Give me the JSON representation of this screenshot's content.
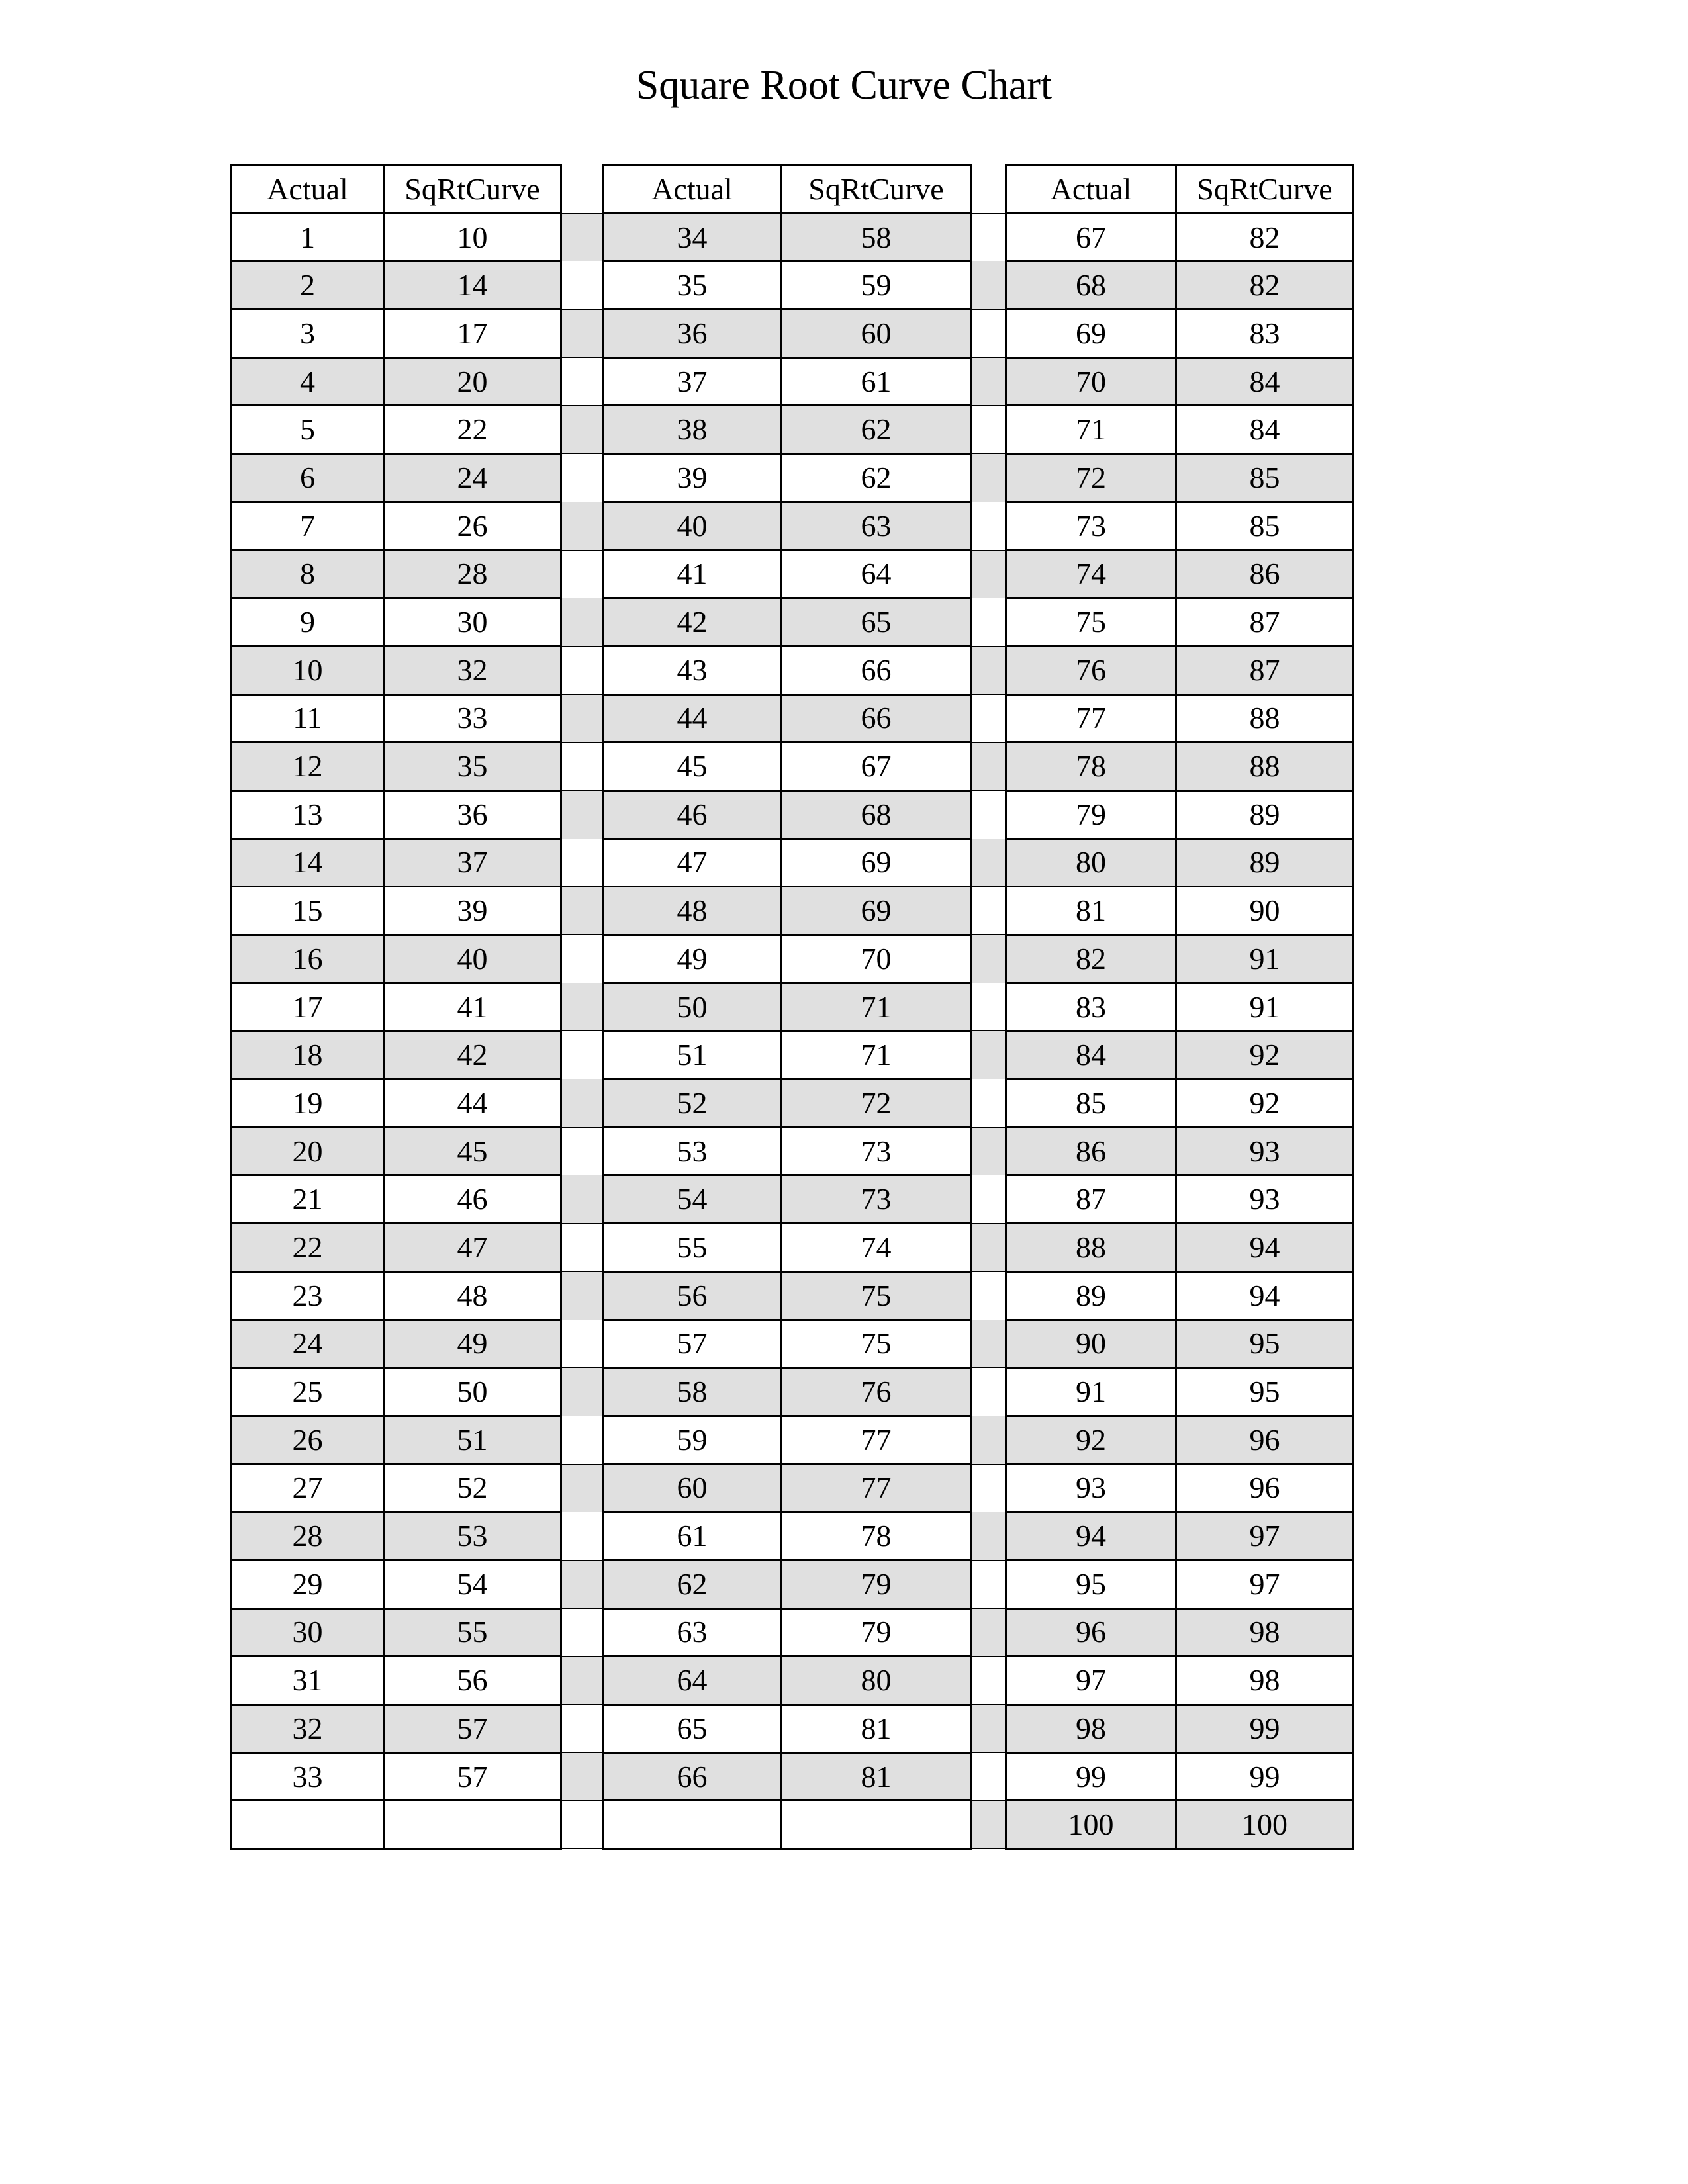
{
  "title": "Square Root Curve Chart",
  "headers": [
    "Actual",
    "SqRtCurve"
  ],
  "shade_color": "#e0e0e0",
  "blocks": [
    {
      "rows": [
        [
          1,
          10
        ],
        [
          2,
          14
        ],
        [
          3,
          17
        ],
        [
          4,
          20
        ],
        [
          5,
          22
        ],
        [
          6,
          24
        ],
        [
          7,
          26
        ],
        [
          8,
          28
        ],
        [
          9,
          30
        ],
        [
          10,
          32
        ],
        [
          11,
          33
        ],
        [
          12,
          35
        ],
        [
          13,
          36
        ],
        [
          14,
          37
        ],
        [
          15,
          39
        ],
        [
          16,
          40
        ],
        [
          17,
          41
        ],
        [
          18,
          42
        ],
        [
          19,
          44
        ],
        [
          20,
          45
        ],
        [
          21,
          46
        ],
        [
          22,
          47
        ],
        [
          23,
          48
        ],
        [
          24,
          49
        ],
        [
          25,
          50
        ],
        [
          26,
          51
        ],
        [
          27,
          52
        ],
        [
          28,
          53
        ],
        [
          29,
          54
        ],
        [
          30,
          55
        ],
        [
          31,
          56
        ],
        [
          32,
          57
        ],
        [
          33,
          57
        ]
      ]
    },
    {
      "rows": [
        [
          34,
          58
        ],
        [
          35,
          59
        ],
        [
          36,
          60
        ],
        [
          37,
          61
        ],
        [
          38,
          62
        ],
        [
          39,
          62
        ],
        [
          40,
          63
        ],
        [
          41,
          64
        ],
        [
          42,
          65
        ],
        [
          43,
          66
        ],
        [
          44,
          66
        ],
        [
          45,
          67
        ],
        [
          46,
          68
        ],
        [
          47,
          69
        ],
        [
          48,
          69
        ],
        [
          49,
          70
        ],
        [
          50,
          71
        ],
        [
          51,
          71
        ],
        [
          52,
          72
        ],
        [
          53,
          73
        ],
        [
          54,
          73
        ],
        [
          55,
          74
        ],
        [
          56,
          75
        ],
        [
          57,
          75
        ],
        [
          58,
          76
        ],
        [
          59,
          77
        ],
        [
          60,
          77
        ],
        [
          61,
          78
        ],
        [
          62,
          79
        ],
        [
          63,
          79
        ],
        [
          64,
          80
        ],
        [
          65,
          81
        ],
        [
          66,
          81
        ]
      ]
    },
    {
      "rows": [
        [
          67,
          82
        ],
        [
          68,
          82
        ],
        [
          69,
          83
        ],
        [
          70,
          84
        ],
        [
          71,
          84
        ],
        [
          72,
          85
        ],
        [
          73,
          85
        ],
        [
          74,
          86
        ],
        [
          75,
          87
        ],
        [
          76,
          87
        ],
        [
          77,
          88
        ],
        [
          78,
          88
        ],
        [
          79,
          89
        ],
        [
          80,
          89
        ],
        [
          81,
          90
        ],
        [
          82,
          91
        ],
        [
          83,
          91
        ],
        [
          84,
          92
        ],
        [
          85,
          92
        ],
        [
          86,
          93
        ],
        [
          87,
          93
        ],
        [
          88,
          94
        ],
        [
          89,
          94
        ],
        [
          90,
          95
        ],
        [
          91,
          95
        ],
        [
          92,
          96
        ],
        [
          93,
          96
        ],
        [
          94,
          97
        ],
        [
          95,
          97
        ],
        [
          96,
          98
        ],
        [
          97,
          98
        ],
        [
          98,
          99
        ],
        [
          99,
          99
        ],
        [
          100,
          100
        ]
      ]
    }
  ]
}
